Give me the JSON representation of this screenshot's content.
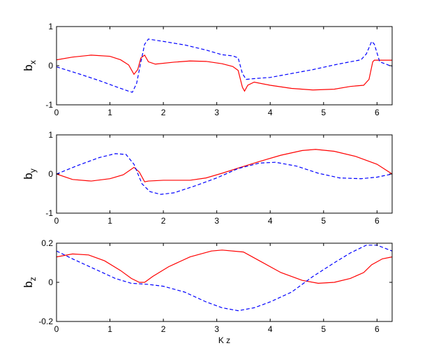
{
  "chart_data": [
    {
      "type": "line",
      "ylabel": "b",
      "ylabel_sub": "x",
      "xlabel": "",
      "xlim": [
        0,
        6.283
      ],
      "ylim": [
        -1,
        1
      ],
      "xticks": [
        0,
        1,
        2,
        3,
        4,
        5,
        6
      ],
      "yticks": [
        -1,
        0,
        1
      ],
      "series": [
        {
          "color": "#ff0000",
          "style": "solid",
          "points": [
            [
              0,
              0.15
            ],
            [
              0.3,
              0.22
            ],
            [
              0.65,
              0.27
            ],
            [
              1.0,
              0.24
            ],
            [
              1.2,
              0.15
            ],
            [
              1.35,
              0.02
            ],
            [
              1.45,
              -0.22
            ],
            [
              1.52,
              -0.1
            ],
            [
              1.58,
              0.2
            ],
            [
              1.65,
              0.27
            ],
            [
              1.72,
              0.1
            ],
            [
              1.85,
              0.04
            ],
            [
              2.2,
              0.09
            ],
            [
              2.5,
              0.12
            ],
            [
              2.8,
              0.11
            ],
            [
              3.1,
              0.05
            ],
            [
              3.3,
              -0.02
            ],
            [
              3.4,
              -0.12
            ],
            [
              3.48,
              -0.55
            ],
            [
              3.52,
              -0.65
            ],
            [
              3.58,
              -0.5
            ],
            [
              3.7,
              -0.42
            ],
            [
              4.0,
              -0.5
            ],
            [
              4.4,
              -0.58
            ],
            [
              4.8,
              -0.62
            ],
            [
              5.2,
              -0.6
            ],
            [
              5.5,
              -0.53
            ],
            [
              5.75,
              -0.5
            ],
            [
              5.85,
              -0.35
            ],
            [
              5.92,
              0.1
            ],
            [
              5.95,
              0.14
            ],
            [
              6.283,
              0.14
            ]
          ]
        },
        {
          "color": "#0000ff",
          "style": "dashed",
          "points": [
            [
              0,
              -0.03
            ],
            [
              0.4,
              -0.2
            ],
            [
              0.8,
              -0.38
            ],
            [
              1.2,
              -0.58
            ],
            [
              1.35,
              -0.65
            ],
            [
              1.42,
              -0.68
            ],
            [
              1.5,
              -0.45
            ],
            [
              1.58,
              0.1
            ],
            [
              1.65,
              0.55
            ],
            [
              1.72,
              0.68
            ],
            [
              2.0,
              0.62
            ],
            [
              2.4,
              0.53
            ],
            [
              2.8,
              0.4
            ],
            [
              3.1,
              0.28
            ],
            [
              3.3,
              0.25
            ],
            [
              3.4,
              0.2
            ],
            [
              3.48,
              -0.2
            ],
            [
              3.55,
              -0.35
            ],
            [
              3.7,
              -0.33
            ],
            [
              4.0,
              -0.3
            ],
            [
              4.4,
              -0.2
            ],
            [
              4.8,
              -0.1
            ],
            [
              5.2,
              0.02
            ],
            [
              5.5,
              0.1
            ],
            [
              5.7,
              0.15
            ],
            [
              5.8,
              0.3
            ],
            [
              5.9,
              0.62
            ],
            [
              5.95,
              0.55
            ],
            [
              6.05,
              0.1
            ],
            [
              6.283,
              -0.02
            ]
          ]
        }
      ]
    },
    {
      "type": "line",
      "ylabel": "b",
      "ylabel_sub": "y",
      "xlabel": "",
      "xlim": [
        0,
        6.283
      ],
      "ylim": [
        -1,
        1
      ],
      "xticks": [
        0,
        1,
        2,
        3,
        4,
        5,
        6
      ],
      "yticks": [
        -1,
        0,
        1
      ],
      "series": [
        {
          "color": "#ff0000",
          "style": "solid",
          "points": [
            [
              0,
              0
            ],
            [
              0.3,
              -0.14
            ],
            [
              0.65,
              -0.18
            ],
            [
              1.0,
              -0.12
            ],
            [
              1.25,
              -0.02
            ],
            [
              1.45,
              0.17
            ],
            [
              1.55,
              0.05
            ],
            [
              1.65,
              -0.2
            ],
            [
              1.72,
              -0.18
            ],
            [
              2.0,
              -0.16
            ],
            [
              2.5,
              -0.16
            ],
            [
              2.8,
              -0.1
            ],
            [
              3.1,
              0.02
            ],
            [
              3.4,
              0.15
            ],
            [
              3.8,
              0.32
            ],
            [
              4.2,
              0.48
            ],
            [
              4.6,
              0.6
            ],
            [
              4.85,
              0.63
            ],
            [
              5.2,
              0.58
            ],
            [
              5.6,
              0.45
            ],
            [
              6.0,
              0.25
            ],
            [
              6.283,
              0
            ]
          ]
        },
        {
          "color": "#0000ff",
          "style": "dashed",
          "points": [
            [
              0,
              0
            ],
            [
              0.4,
              0.22
            ],
            [
              0.8,
              0.42
            ],
            [
              1.1,
              0.52
            ],
            [
              1.3,
              0.5
            ],
            [
              1.45,
              0.25
            ],
            [
              1.6,
              -0.25
            ],
            [
              1.75,
              -0.45
            ],
            [
              1.95,
              -0.52
            ],
            [
              2.2,
              -0.48
            ],
            [
              2.6,
              -0.3
            ],
            [
              3.0,
              -0.1
            ],
            [
              3.4,
              0.14
            ],
            [
              3.8,
              0.28
            ],
            [
              4.1,
              0.3
            ],
            [
              4.5,
              0.2
            ],
            [
              4.9,
              0.02
            ],
            [
              5.3,
              -0.1
            ],
            [
              5.7,
              -0.12
            ],
            [
              6.0,
              -0.08
            ],
            [
              6.283,
              0
            ]
          ]
        }
      ]
    },
    {
      "type": "line",
      "ylabel": "b",
      "ylabel_sub": "z",
      "xlabel": "K z",
      "xlim": [
        0,
        6.283
      ],
      "ylim": [
        -0.2,
        0.2
      ],
      "xticks": [
        0,
        1,
        2,
        3,
        4,
        5,
        6
      ],
      "yticks": [
        -0.2,
        0,
        0.2
      ],
      "series": [
        {
          "color": "#ff0000",
          "style": "solid",
          "points": [
            [
              0,
              0.13
            ],
            [
              0.3,
              0.145
            ],
            [
              0.6,
              0.14
            ],
            [
              0.9,
              0.11
            ],
            [
              1.2,
              0.06
            ],
            [
              1.4,
              0.02
            ],
            [
              1.55,
              0.0
            ],
            [
              1.65,
              0.0
            ],
            [
              1.8,
              0.03
            ],
            [
              2.1,
              0.08
            ],
            [
              2.5,
              0.13
            ],
            [
              2.9,
              0.16
            ],
            [
              3.1,
              0.165
            ],
            [
              3.5,
              0.155
            ],
            [
              3.8,
              0.11
            ],
            [
              4.2,
              0.05
            ],
            [
              4.6,
              0.01
            ],
            [
              4.9,
              -0.005
            ],
            [
              5.2,
              0.0
            ],
            [
              5.5,
              0.02
            ],
            [
              5.75,
              0.05
            ],
            [
              5.9,
              0.09
            ],
            [
              6.1,
              0.12
            ],
            [
              6.283,
              0.13
            ]
          ]
        },
        {
          "color": "#0000ff",
          "style": "dashed",
          "points": [
            [
              0,
              0.16
            ],
            [
              0.3,
              0.12
            ],
            [
              0.7,
              0.07
            ],
            [
              1.1,
              0.02
            ],
            [
              1.4,
              -0.005
            ],
            [
              1.7,
              -0.01
            ],
            [
              2.0,
              -0.02
            ],
            [
              2.4,
              -0.05
            ],
            [
              2.8,
              -0.1
            ],
            [
              3.1,
              -0.13
            ],
            [
              3.4,
              -0.145
            ],
            [
              3.7,
              -0.13
            ],
            [
              4.0,
              -0.1
            ],
            [
              4.4,
              -0.05
            ],
            [
              4.8,
              0.03
            ],
            [
              5.2,
              0.1
            ],
            [
              5.5,
              0.15
            ],
            [
              5.8,
              0.19
            ],
            [
              6.0,
              0.19
            ],
            [
              6.283,
              0.16
            ]
          ]
        }
      ]
    }
  ]
}
